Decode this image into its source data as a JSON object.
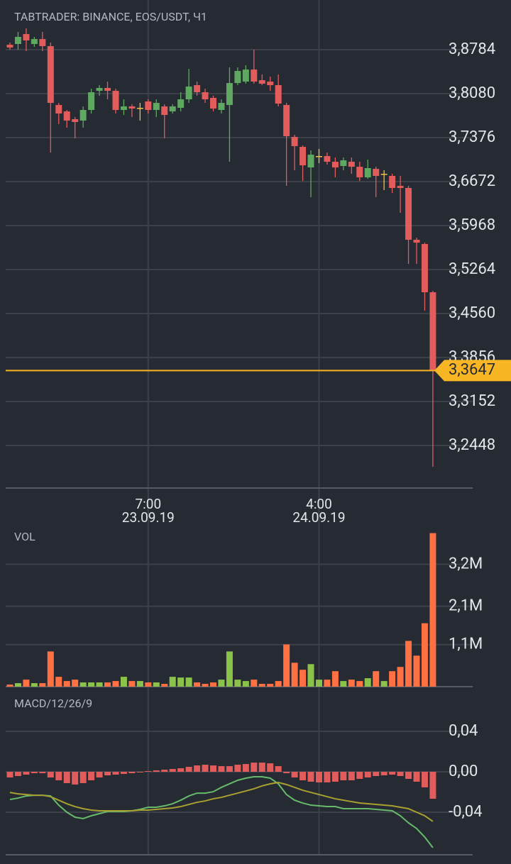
{
  "chart_data": [
    {
      "type": "candlestick",
      "title": "TABTRADER: BINANCE, EOS/USDT, Ч1",
      "categories": [
        null,
        null,
        null,
        null,
        null,
        null,
        null,
        null,
        null,
        null,
        null,
        null,
        null,
        null,
        null,
        null,
        null,
        "7:00",
        null,
        null,
        null,
        null,
        null,
        null,
        null,
        null,
        null,
        null,
        null,
        null,
        null,
        null,
        null,
        null,
        null,
        null,
        null,
        null,
        "4:00",
        null,
        null,
        null,
        null,
        null,
        null,
        null,
        null,
        null,
        null,
        null,
        null,
        null,
        null
      ],
      "category_dates": [
        null,
        null,
        null,
        null,
        null,
        null,
        null,
        null,
        null,
        null,
        null,
        null,
        null,
        null,
        null,
        null,
        null,
        "23.09.19",
        null,
        null,
        null,
        null,
        null,
        null,
        null,
        null,
        null,
        null,
        null,
        null,
        null,
        null,
        null,
        null,
        null,
        null,
        null,
        null,
        "24.09.19",
        null,
        null,
        null,
        null,
        null,
        null,
        null,
        null,
        null,
        null,
        null,
        null,
        null,
        null
      ],
      "open": [
        3.8863,
        3.8875,
        3.9034,
        3.8875,
        3.8954,
        3.8841,
        3.7898,
        3.7796,
        3.7671,
        3.7649,
        3.7819,
        3.8125,
        3.8171,
        3.8125,
        3.7819,
        3.7876,
        3.7853,
        3.7955,
        3.7819,
        3.7876,
        3.7796,
        3.7853,
        3.7989,
        3.8216,
        3.8103,
        3.8012,
        3.7819,
        3.7898,
        3.825,
        3.8273,
        3.8466,
        3.8296,
        3.8273,
        3.8216,
        3.7898,
        3.7387,
        3.7228,
        3.6899,
        3.7081,
        3.7081,
        3.699,
        3.6922,
        3.699,
        3.691,
        3.674,
        3.6876,
        3.6797,
        3.6763,
        3.6604,
        3.657,
        3.5741,
        3.5673,
        3.4901
      ],
      "high": [
        3.8898,
        3.9068,
        3.9125,
        3.8988,
        3.9068,
        3.8898,
        3.7932,
        3.7819,
        3.7705,
        3.7876,
        3.8159,
        3.8216,
        3.8273,
        3.8159,
        3.7989,
        3.791,
        3.7932,
        3.7989,
        3.7989,
        3.791,
        3.791,
        3.8103,
        3.8477,
        3.8273,
        3.8159,
        3.8046,
        3.7989,
        3.85,
        3.85,
        3.8534,
        3.8784,
        3.8387,
        3.8352,
        3.8387,
        3.7932,
        3.7421,
        3.7251,
        3.7172,
        3.7194,
        3.7137,
        3.7058,
        3.7058,
        3.7058,
        3.699,
        3.7024,
        3.691,
        3.6854,
        3.6797,
        3.6763,
        3.6604,
        3.5775,
        3.5695,
        3.4923
      ],
      "low": [
        3.8784,
        3.8784,
        3.8761,
        3.8829,
        3.8761,
        3.7137,
        3.7592,
        3.7535,
        3.7365,
        3.7535,
        3.7762,
        3.8046,
        3.7989,
        3.7762,
        3.7739,
        3.7705,
        3.7649,
        3.7762,
        3.7705,
        3.7365,
        3.7762,
        3.7796,
        3.7932,
        3.8046,
        3.7932,
        3.7796,
        3.7762,
        3.699,
        3.8216,
        3.8239,
        3.8239,
        3.8216,
        3.8125,
        3.7876,
        3.6604,
        3.6854,
        3.6683,
        3.6422,
        3.6967,
        3.6944,
        3.674,
        3.6854,
        3.6797,
        3.6683,
        3.6717,
        3.6422,
        3.6536,
        3.649,
        3.6172,
        3.5355,
        3.5355,
        3.4605,
        3.2107
      ],
      "close": [
        3.8818,
        3.8988,
        3.8932,
        3.8954,
        3.8841,
        3.7932,
        3.7762,
        3.7649,
        3.7626,
        3.7819,
        3.8103,
        3.8171,
        3.8125,
        3.7819,
        3.7876,
        3.7842,
        3.7853,
        3.7819,
        3.7932,
        3.7739,
        3.7876,
        3.7989,
        3.8194,
        3.8103,
        3.7989,
        3.7842,
        3.7932,
        3.825,
        3.8443,
        3.8466,
        3.8273,
        3.8239,
        3.8216,
        3.7921,
        3.7399,
        3.724,
        3.6933,
        3.7103,
        3.7081,
        3.699,
        3.6899,
        3.7013,
        3.691,
        3.674,
        3.6888,
        3.6763,
        3.6797,
        3.657,
        3.657,
        3.5741,
        3.5695,
        3.4901,
        3.3647
      ],
      "up_color": "#5fa861",
      "down_color": "#e25c5c",
      "doji_color": "#f0c040",
      "last_price": {
        "value": 3.3647,
        "label": "3,3647"
      },
      "last_price_color": "#f9b624",
      "ylim": [
        3.1767,
        3.9579
      ],
      "yticks": [
        {
          "value": 3.8784,
          "label": "3,8784"
        },
        {
          "value": 3.808,
          "label": "3,8080"
        },
        {
          "value": 3.7376,
          "label": "3,7376"
        },
        {
          "value": 3.6672,
          "label": "3,6672"
        },
        {
          "value": 3.5968,
          "label": "3,5968"
        },
        {
          "value": 3.5264,
          "label": "3,5264"
        },
        {
          "value": 3.456,
          "label": "3,4560"
        },
        {
          "value": 3.3856,
          "label": "3,3856"
        },
        {
          "value": 3.3152,
          "label": "3,3152"
        },
        {
          "value": 3.2448,
          "label": "3,2448"
        }
      ],
      "grid": true
    },
    {
      "type": "bar",
      "title": "VOL",
      "values": [
        55000,
        92000,
        184000,
        92000,
        92000,
        921000,
        258000,
        147000,
        184000,
        111000,
        111000,
        111000,
        111000,
        147000,
        258000,
        147000,
        147000,
        111000,
        111000,
        74000,
        258000,
        239000,
        239000,
        111000,
        74000,
        111000,
        184000,
        921000,
        184000,
        147000,
        184000,
        74000,
        74000,
        147000,
        1105000,
        626000,
        442000,
        589000,
        184000,
        184000,
        405000,
        147000,
        184000,
        147000,
        221000,
        405000,
        147000,
        405000,
        516000,
        1197000,
        811000,
        1658000,
        4016000
      ],
      "up_color": "#8bc34a",
      "down_color": "#ff7043",
      "ylim": [
        0,
        4230000
      ],
      "yticks": [
        {
          "value": 3200000,
          "label": "3,2M"
        },
        {
          "value": 2100000,
          "label": "2,1M"
        },
        {
          "value": 1100000,
          "label": "1,1M"
        }
      ],
      "grid": true
    },
    {
      "type": "macd",
      "title": "MACD/12/26/9",
      "histogram": [
        -0.0056,
        -0.0042,
        -0.0028,
        -0.0014,
        -0.0014,
        -0.0056,
        -0.0084,
        -0.0112,
        -0.0126,
        -0.0112,
        -0.0084,
        -0.0056,
        -0.0035,
        -0.0028,
        -0.0021,
        -0.0014,
        -0.0007,
        0.0007,
        0.0014,
        0.0021,
        0.0028,
        0.0035,
        0.0049,
        0.0063,
        0.007,
        0.0063,
        0.0056,
        0.0056,
        0.007,
        0.0077,
        0.0091,
        0.0091,
        0.0084,
        0.0056,
        -0.0014,
        -0.0056,
        -0.0084,
        -0.0098,
        -0.0105,
        -0.0105,
        -0.0098,
        -0.0084,
        -0.0084,
        -0.007,
        -0.0056,
        -0.0042,
        -0.0035,
        -0.0028,
        -0.0042,
        -0.007,
        -0.0098,
        -0.0154,
        -0.0267
      ],
      "histogram_color": "#e25c5c",
      "lines": [
        {
          "color": "#66bb6a",
          "values": [
            -0.0274,
            -0.026,
            -0.0239,
            -0.0232,
            -0.0232,
            -0.0239,
            -0.033,
            -0.04,
            -0.0449,
            -0.0463,
            -0.0435,
            -0.0414,
            -0.0393,
            -0.0393,
            -0.0393,
            -0.0386,
            -0.0372,
            -0.0351,
            -0.0351,
            -0.0337,
            -0.0316,
            -0.0281,
            -0.0239,
            -0.0211,
            -0.0211,
            -0.0197,
            -0.0154,
            -0.0119,
            -0.0084,
            -0.0063,
            -0.0049,
            -0.0049,
            -0.0063,
            -0.0119,
            -0.0225,
            -0.0281,
            -0.0309,
            -0.033,
            -0.0337,
            -0.0344,
            -0.0344,
            -0.0365,
            -0.0365,
            -0.0365,
            -0.0365,
            -0.0372,
            -0.0379,
            -0.0386,
            -0.0435,
            -0.0505,
            -0.0561,
            -0.0646,
            -0.0751
          ]
        },
        {
          "color": "#a8a030",
          "values": [
            -0.0204,
            -0.0218,
            -0.0225,
            -0.0232,
            -0.0232,
            -0.0246,
            -0.0281,
            -0.0316,
            -0.0344,
            -0.0365,
            -0.0379,
            -0.0386,
            -0.0386,
            -0.0386,
            -0.0386,
            -0.0386,
            -0.0379,
            -0.0379,
            -0.0372,
            -0.0365,
            -0.0358,
            -0.0344,
            -0.0323,
            -0.0302,
            -0.0288,
            -0.0267,
            -0.0253,
            -0.0232,
            -0.0211,
            -0.019,
            -0.0168,
            -0.014,
            -0.0119,
            -0.0105,
            -0.0126,
            -0.0154,
            -0.0183,
            -0.0204,
            -0.0225,
            -0.0246,
            -0.0267,
            -0.0281,
            -0.0295,
            -0.0309,
            -0.0316,
            -0.0323,
            -0.033,
            -0.0337,
            -0.0351,
            -0.0365,
            -0.04,
            -0.0435,
            -0.0491
          ]
        }
      ],
      "ylim": [
        -0.0821,
        0.0723
      ],
      "yticks": [
        {
          "value": 0.04,
          "label": "0,04"
        },
        {
          "value": 0,
          "label": "0,00"
        },
        {
          "value": -0.04,
          "label": "-0,04"
        }
      ],
      "grid": true
    }
  ]
}
